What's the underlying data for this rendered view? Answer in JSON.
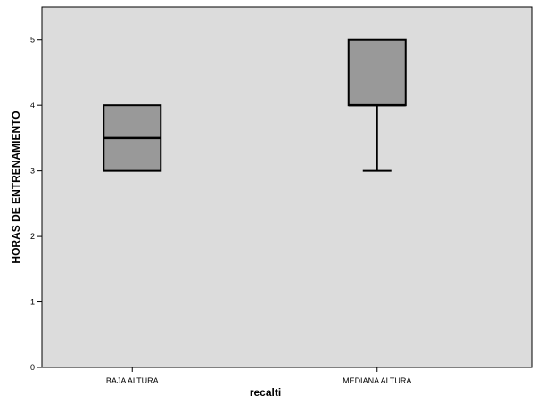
{
  "colors": {
    "plot_background": "#dcdcdc",
    "box_fill": "#999999",
    "line": "#000000"
  },
  "chart_data": {
    "type": "boxplot",
    "xlabel": "recalti",
    "ylabel": "HORAS DE ENTRENAMIENTO",
    "categories": [
      "BAJA ALTURA",
      "MEDIANA ALTURA"
    ],
    "ylim": [
      0,
      5.5
    ],
    "yticks": [
      0,
      1,
      2,
      3,
      4,
      5
    ],
    "grid": false,
    "boxes": [
      {
        "category": "BAJA ALTURA",
        "whisker_low": 3,
        "q1": 3,
        "median": 3.5,
        "q3": 4,
        "whisker_high": 4
      },
      {
        "category": "MEDIANA ALTURA",
        "whisker_low": 3,
        "q1": 4,
        "median": 4,
        "q3": 5,
        "whisker_high": 5
      }
    ]
  }
}
